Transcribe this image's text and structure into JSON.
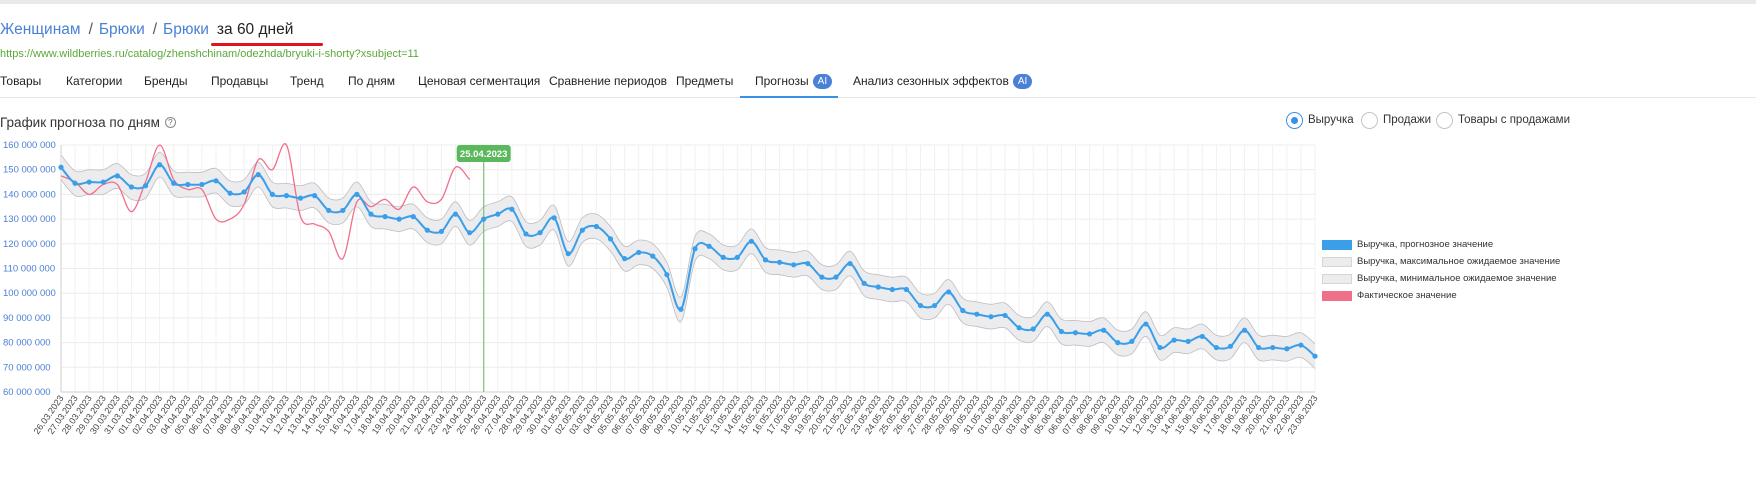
{
  "breadcrumb": {
    "items": [
      "Женщинам",
      "Брюки",
      "Брюки"
    ],
    "period": "за 60 дней"
  },
  "url": "https://www.wildberries.ru/catalog/zhenshchinam/odezhda/bryuki-i-shorty?xsubject=11",
  "tabs": [
    {
      "label": "Товары",
      "ai": false,
      "active": false
    },
    {
      "label": "Категории",
      "ai": false,
      "active": false
    },
    {
      "label": "Бренды",
      "ai": false,
      "active": false
    },
    {
      "label": "Продавцы",
      "ai": false,
      "active": false
    },
    {
      "label": "Тренд",
      "ai": false,
      "active": false
    },
    {
      "label": "По дням",
      "ai": false,
      "active": false
    },
    {
      "label": "Ценовая сегментация",
      "ai": false,
      "active": false
    },
    {
      "label": "Сравнение периодов",
      "ai": false,
      "active": false
    },
    {
      "label": "Предметы",
      "ai": false,
      "active": false
    },
    {
      "label": "Прогнозы",
      "ai": true,
      "active": true
    },
    {
      "label": "Анализ сезонных эффектов",
      "ai": true,
      "active": false
    }
  ],
  "ai_badge": "AI",
  "section": {
    "title": "График прогноза по дням",
    "help_icon": "question-circle-icon"
  },
  "radio_options": [
    {
      "label": "Выручка",
      "checked": true
    },
    {
      "label": "Продажи",
      "checked": false
    },
    {
      "label": "Товары с продажами",
      "checked": false
    }
  ],
  "colors": {
    "forecast": "#3a9ee8",
    "band": "#ececee",
    "actual": "#f0708a",
    "marker": "#5cb85c",
    "link": "#4a80d6",
    "url": "#5aa83a",
    "underline": "#e0141e"
  },
  "chart_data": {
    "type": "line",
    "title": "",
    "xlabel": "",
    "ylabel": "",
    "ylim": [
      60000000,
      160000000
    ],
    "y_ticks": [
      60000000,
      70000000,
      80000000,
      90000000,
      100000000,
      110000000,
      120000000,
      130000000,
      140000000,
      150000000,
      160000000
    ],
    "y_tick_labels": [
      "60 000 000",
      "70 000 000",
      "80 000 000",
      "90 000 000",
      "100 000 000",
      "110 000 000",
      "120 000 000",
      "130 000 000",
      "140 000 000",
      "150 000 000",
      "160 000 000"
    ],
    "grid": true,
    "legend_position": "right",
    "marker_date": "25.04.2023",
    "categories": [
      "26.03.2023",
      "27.03.2023",
      "28.03.2023",
      "29.03.2023",
      "30.03.2023",
      "31.03.2023",
      "01.04.2023",
      "02.04.2023",
      "03.04.2023",
      "04.04.2023",
      "05.04.2023",
      "06.04.2023",
      "07.04.2023",
      "08.04.2023",
      "09.04.2023",
      "10.04.2023",
      "11.04.2023",
      "12.04.2023",
      "13.04.2023",
      "14.04.2023",
      "15.04.2023",
      "16.04.2023",
      "17.04.2023",
      "18.04.2023",
      "19.04.2023",
      "20.04.2023",
      "21.04.2023",
      "22.04.2023",
      "23.04.2023",
      "24.04.2023",
      "25.04.2023",
      "26.04.2023",
      "27.04.2023",
      "28.04.2023",
      "29.04.2023",
      "30.04.2023",
      "01.05.2023",
      "02.05.2023",
      "03.05.2023",
      "04.05.2023",
      "05.05.2023",
      "06.05.2023",
      "07.05.2023",
      "08.05.2023",
      "09.05.2023",
      "10.05.2023",
      "11.05.2023",
      "12.05.2023",
      "13.05.2023",
      "14.05.2023",
      "15.05.2023",
      "16.05.2023",
      "17.05.2023",
      "18.05.2023",
      "19.05.2023",
      "20.05.2023",
      "21.05.2023",
      "22.05.2023",
      "23.05.2023",
      "24.05.2023",
      "25.05.2023",
      "26.05.2023",
      "27.05.2023",
      "28.05.2023",
      "29.05.2023",
      "30.05.2023",
      "31.05.2023",
      "01.06.2023",
      "02.06.2023",
      "03.06.2023",
      "04.06.2023",
      "05.06.2023",
      "06.06.2023",
      "07.06.2023",
      "08.06.2023",
      "09.06.2023",
      "10.06.2023",
      "11.06.2023",
      "12.06.2023",
      "13.06.2023",
      "14.06.2023",
      "15.06.2023",
      "16.06.2023",
      "17.06.2023",
      "18.06.2023",
      "19.06.2023",
      "20.06.2023",
      "21.06.2023",
      "22.06.2023",
      "23.06.2023"
    ],
    "series": [
      {
        "name": "Выручка, прогнозное значение",
        "values": [
          151,
          144.5,
          145,
          145,
          147.5,
          143,
          143.5,
          152,
          144.5,
          144,
          144,
          145.5,
          140.5,
          141,
          148,
          140,
          139.5,
          138.5,
          139.5,
          133.5,
          133.5,
          140,
          132,
          131,
          130,
          131,
          125.5,
          125,
          132,
          124.5,
          130,
          132,
          134,
          124,
          124.5,
          130.5,
          116,
          125.5,
          127,
          122,
          114,
          116.5,
          115,
          107.5,
          93.5,
          118,
          119,
          114.5,
          114.5,
          121,
          113.5,
          112.5,
          111.5,
          112,
          106.5,
          106.5,
          112,
          104,
          102.5,
          101.5,
          101.5,
          95,
          95,
          100.5,
          93,
          91.5,
          90.5,
          91,
          86,
          85.5,
          91.5,
          84.5,
          84,
          83.5,
          85,
          80,
          80.5,
          87.5,
          78,
          81,
          80.5,
          82.5,
          78,
          78.5,
          85,
          78,
          78,
          77.5,
          79,
          74.5
        ]
      },
      {
        "name": "Выручка, максимальное ожидаемое значение",
        "values": [
          156,
          149.5,
          150,
          150,
          152.5,
          148,
          148.5,
          157,
          149.5,
          149,
          149,
          150.5,
          145.5,
          146,
          153,
          145,
          144.5,
          143.5,
          144.5,
          138.5,
          138.5,
          145,
          137,
          136,
          135,
          136,
          130.5,
          130,
          137,
          129.5,
          135,
          137,
          139,
          129,
          129.5,
          135.5,
          121,
          130.5,
          132,
          127,
          119,
          121.5,
          120,
          112.5,
          98.5,
          123,
          124,
          119.5,
          119.5,
          126,
          118.5,
          117.5,
          116.5,
          117,
          111.5,
          111.5,
          117,
          109,
          107.5,
          106.5,
          106.5,
          100,
          100,
          105.5,
          98,
          96.5,
          95.5,
          96,
          91,
          90.5,
          96.5,
          89.5,
          89,
          88.5,
          90,
          85,
          85.5,
          92.5,
          83,
          86,
          85.5,
          87.5,
          83,
          83.5,
          90,
          83,
          83,
          82.5,
          84,
          79.5
        ]
      },
      {
        "name": "Выручка, минимальное ожидаемое значение",
        "values": [
          146,
          139.5,
          140,
          140,
          142.5,
          138,
          138.5,
          147,
          139.5,
          139,
          139,
          140.5,
          135.5,
          136,
          143,
          135,
          134.5,
          133.5,
          134.5,
          128.5,
          128.5,
          135,
          127,
          126,
          125,
          126,
          120.5,
          120,
          127,
          119.5,
          125,
          127,
          129,
          119,
          119.5,
          125.5,
          111,
          120.5,
          122,
          117,
          109,
          111.5,
          110,
          102.5,
          88.5,
          113,
          114,
          109.5,
          109.5,
          116,
          108.5,
          107.5,
          106.5,
          107,
          101.5,
          101.5,
          107,
          99,
          97.5,
          96.5,
          96.5,
          90,
          90,
          95.5,
          88,
          86.5,
          85.5,
          86,
          81,
          80.5,
          86.5,
          79.5,
          79,
          78.5,
          80,
          75,
          75.5,
          82.5,
          73,
          76,
          75.5,
          77.5,
          73,
          73.5,
          80,
          73,
          73,
          72.5,
          74,
          69.5
        ]
      },
      {
        "name": "Фактическое значение",
        "values": [
          147.5,
          145,
          140,
          144,
          144,
          133,
          145,
          160,
          146,
          142,
          142,
          130,
          130,
          136,
          154,
          150,
          160,
          131,
          128,
          125,
          114,
          137,
          135,
          138,
          134,
          143,
          137,
          138,
          151,
          146,
          null,
          null,
          null,
          null,
          null,
          null,
          null,
          null,
          null,
          null,
          null,
          null,
          null,
          null,
          null,
          null,
          null,
          null,
          null,
          null,
          null,
          null,
          null,
          null,
          null,
          null,
          null,
          null,
          null,
          null,
          null,
          null,
          null,
          null,
          null,
          null,
          null,
          null,
          null,
          null,
          null,
          null,
          null,
          null,
          null,
          null,
          null,
          null,
          null,
          null,
          null,
          null,
          null,
          null,
          null,
          null,
          null,
          null,
          null,
          null
        ]
      }
    ],
    "value_unit_scale": 1000000
  }
}
